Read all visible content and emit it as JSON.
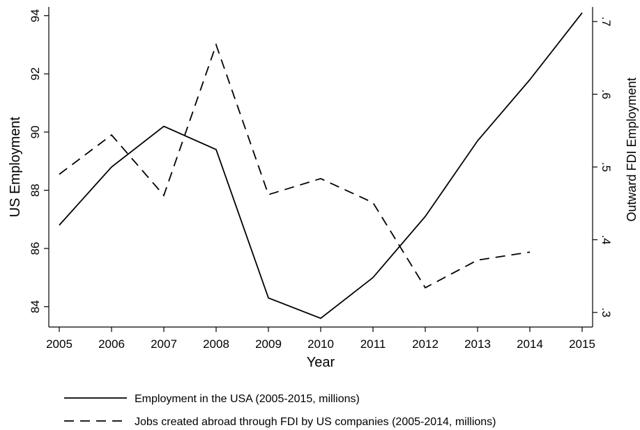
{
  "chart_data": {
    "type": "line",
    "xlabel": "Year",
    "ylabel_left": "US Employment",
    "ylabel_right": "Outward FDI Employment",
    "x_ticks": [
      "2005",
      "2006",
      "2007",
      "2008",
      "2009",
      "2010",
      "2011",
      "2012",
      "2013",
      "2014",
      "2015"
    ],
    "y_left_ticks": [
      {
        "value": 84,
        "label": "84"
      },
      {
        "value": 86,
        "label": "86"
      },
      {
        "value": 88,
        "label": "88"
      },
      {
        "value": 90,
        "label": "90"
      },
      {
        "value": 92,
        "label": "92"
      },
      {
        "value": 94,
        "label": "94"
      }
    ],
    "y_right_ticks": [
      {
        "value": 0.3,
        "label": ".3"
      },
      {
        "value": 0.4,
        "label": ".4"
      },
      {
        "value": 0.5,
        "label": ".5"
      },
      {
        "value": 0.6,
        "label": ".6"
      },
      {
        "value": 0.7,
        "label": ".7"
      }
    ],
    "ylim_left": [
      83.3,
      94.3
    ],
    "ylim_right": [
      0.28,
      0.72
    ],
    "xlim": [
      2005,
      2015
    ],
    "grid": false,
    "legend_position": "bottom",
    "series": [
      {
        "name": "Employment in the USA (2005-2015, millions)",
        "axis": "left",
        "style": "solid",
        "x": [
          2005,
          2006,
          2007,
          2008,
          2009,
          2010,
          2011,
          2012,
          2013,
          2014,
          2015
        ],
        "values": [
          86.8,
          88.8,
          90.2,
          89.4,
          84.3,
          83.6,
          85.0,
          87.1,
          89.7,
          91.8,
          94.1
        ]
      },
      {
        "name": "Jobs created abroad through FDI by US companies (2005-2014, millions)",
        "axis": "right",
        "style": "dashed",
        "x": [
          2005,
          2006,
          2007,
          2008,
          2009,
          2010,
          2011,
          2012,
          2013,
          2014
        ],
        "values": [
          0.49,
          0.544,
          0.461,
          0.668,
          0.462,
          0.484,
          0.451,
          0.334,
          0.372,
          0.383
        ]
      }
    ]
  }
}
